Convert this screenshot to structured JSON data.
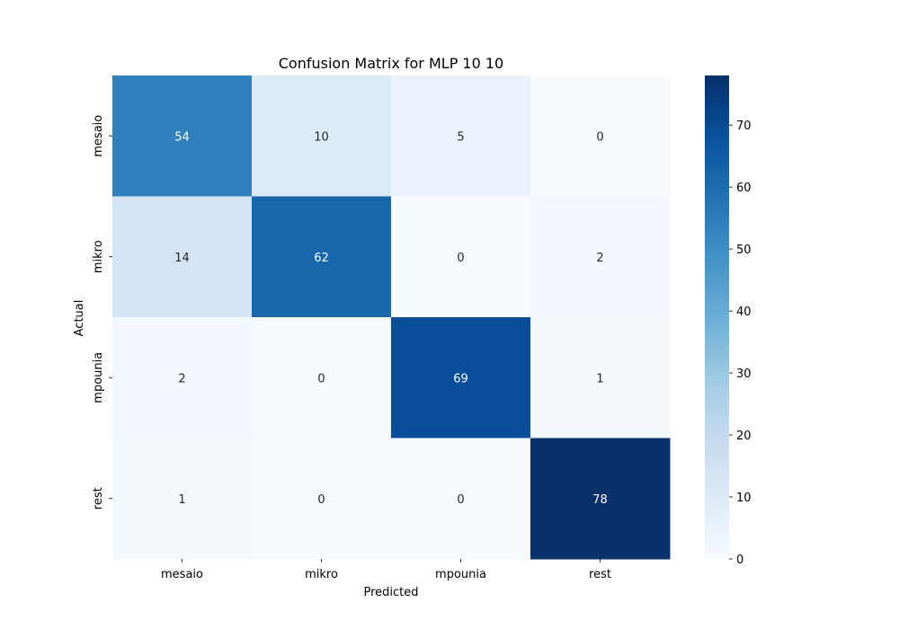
{
  "chart_data": {
    "type": "heatmap",
    "title": "Confusion Matrix for MLP 10 10",
    "xlabel": "Predicted",
    "ylabel": "Actual",
    "x_categories": [
      "mesaio",
      "mikro",
      "mpounia",
      "rest"
    ],
    "y_categories": [
      "mesaio",
      "mikro",
      "mpounia",
      "rest"
    ],
    "values": [
      [
        54,
        10,
        5,
        0
      ],
      [
        14,
        62,
        0,
        2
      ],
      [
        2,
        0,
        69,
        1
      ],
      [
        1,
        0,
        0,
        78
      ]
    ],
    "colormap": "Blues",
    "vmin": 0,
    "vmax": 78,
    "colorbar_ticks": [
      0,
      10,
      20,
      30,
      40,
      50,
      60,
      70
    ],
    "grid": false
  }
}
